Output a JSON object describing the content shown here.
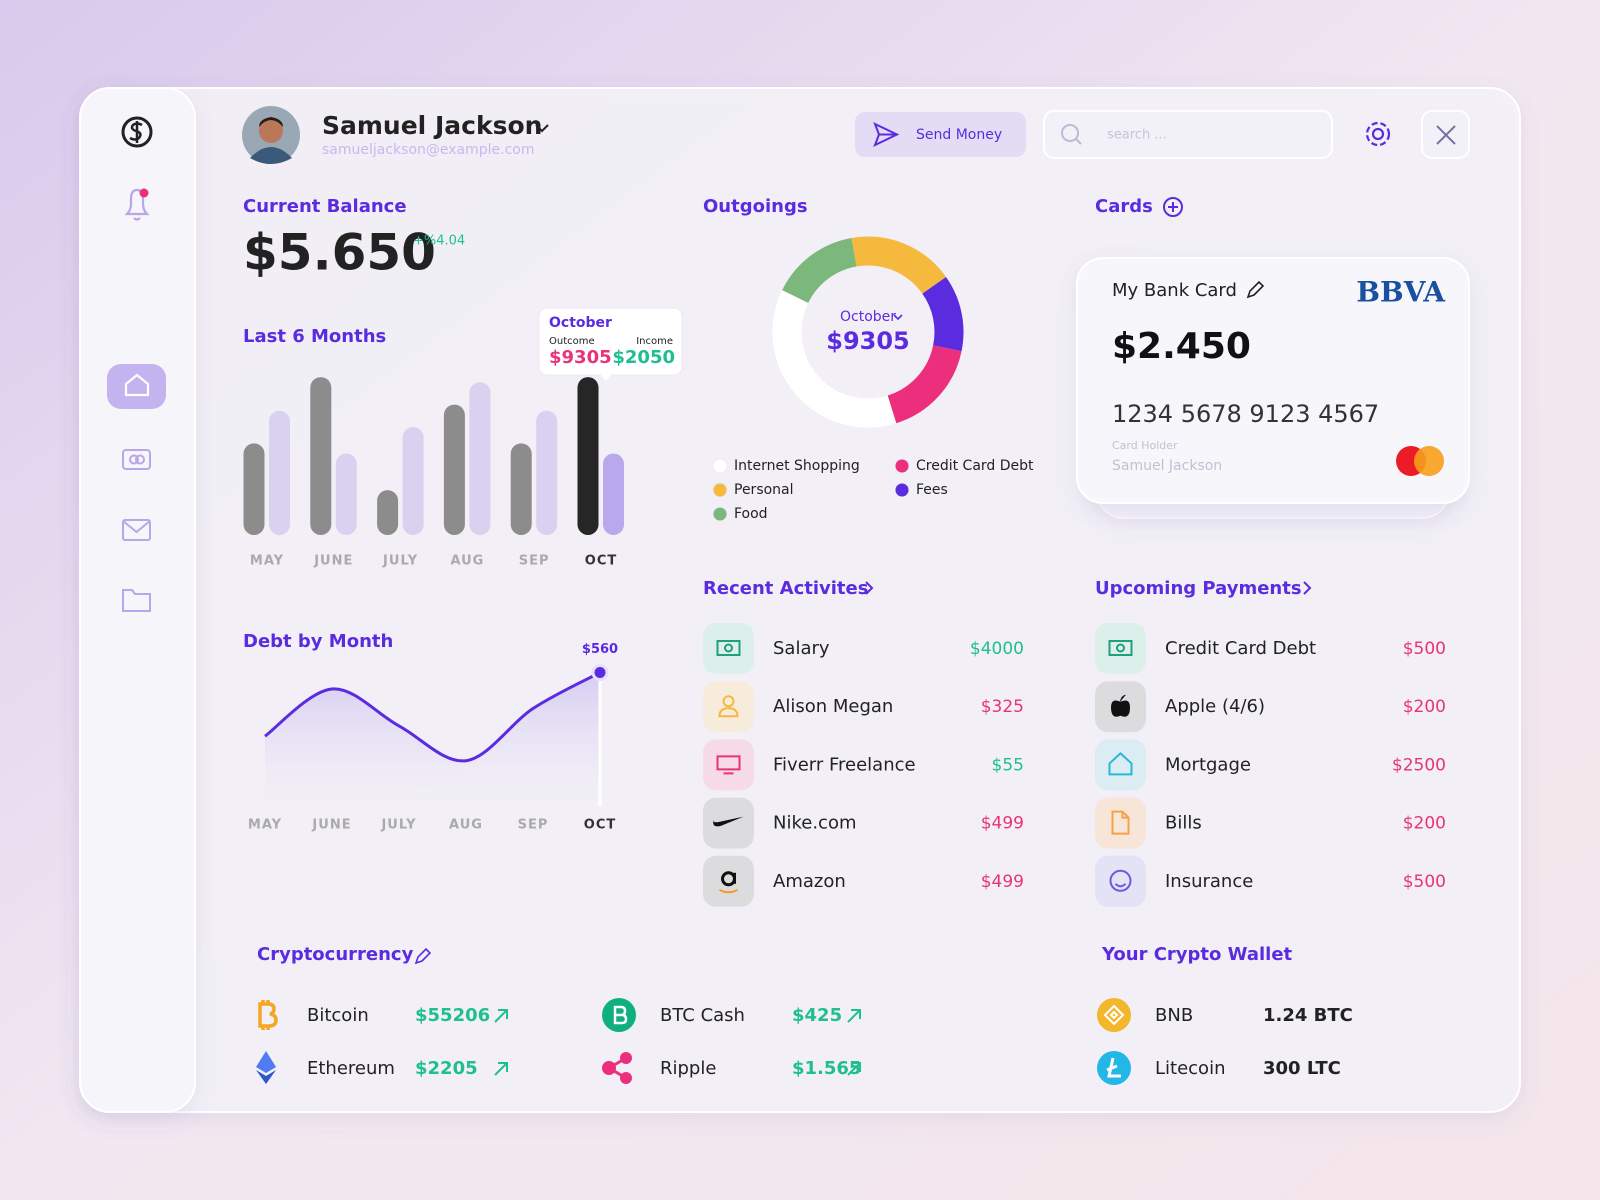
{
  "user": {
    "name": "Samuel Jackson",
    "email": "samueljackson@example.com"
  },
  "actions": {
    "send_money": "Send Money",
    "search_placeholder": "search ..."
  },
  "current_balance": {
    "title": "Current Balance",
    "amount": "$5.650",
    "change": "+%4.04"
  },
  "last_6_months": {
    "title": "Last 6 Months",
    "type": "bar",
    "categories": [
      "MAY",
      "JUNE",
      "JULY",
      "AUG",
      "SEP",
      "OCT"
    ],
    "series": [
      {
        "name": "Outcome",
        "color": [
          "#8c8c8c",
          "#8c8c8c",
          "#8c8c8c",
          "#8c8c8c",
          "#8c8c8c",
          "#262626"
        ],
        "values": [
          90,
          155,
          44,
          128,
          90,
          155
        ]
      },
      {
        "name": "Income",
        "color": [
          "#d9d1f0",
          "#d9d1f0",
          "#d9d1f0",
          "#d9d1f0",
          "#d9d1f0",
          "#b9a8ec"
        ],
        "values": [
          122,
          80,
          106,
          150,
          122,
          80
        ]
      }
    ],
    "ylim": [
      0,
      160
    ],
    "tooltip": {
      "title": "October",
      "outcome": "$9305",
      "income": "$2050"
    }
  },
  "debt_by_month": {
    "title": "Debt by Month",
    "type": "line",
    "categories": [
      "MAY",
      "JUNE",
      "JULY",
      "AUG",
      "SEP",
      "OCT"
    ],
    "values": [
      293,
      491,
      336,
      190,
      409,
      560
    ],
    "value_labels": [
      null,
      null,
      null,
      null,
      null,
      "$560"
    ],
    "ylim": [
      0,
      600
    ],
    "color": "#5b2be0"
  },
  "outgoings": {
    "title": "Outgoings",
    "type": "pie",
    "month": "October",
    "total": "$9305",
    "categories": [
      "Internet Shopping",
      "Personal",
      "Food",
      "Credit Card Debt",
      "Fees"
    ],
    "values": [
      37,
      18,
      15,
      17,
      13
    ],
    "colors": [
      "#ffffff",
      "#f5b93e",
      "#7cb77c",
      "#ec2f7c",
      "#5b2be0"
    ]
  },
  "cards": {
    "title": "Cards",
    "card": {
      "name": "My Bank Card",
      "bank": "BBVA",
      "balance": "$2.450",
      "number": "1234 5678 9123 4567",
      "holder_label": "Card Holder",
      "holder": "Samuel Jackson"
    }
  },
  "recent_activities": {
    "title": "Recent Activites",
    "items": [
      {
        "name": "Salary",
        "amount": "$4000",
        "color": "#1fbf8f"
      },
      {
        "name": "Alison Megan",
        "amount": "$325",
        "color": "#e8337a"
      },
      {
        "name": "Fiverr Freelance",
        "amount": "$55",
        "color": "#1fbf8f"
      },
      {
        "name": "Nike.com",
        "amount": "$499",
        "color": "#e8337a"
      },
      {
        "name": "Amazon",
        "amount": "$499",
        "color": "#e8337a"
      }
    ]
  },
  "upcoming_payments": {
    "title": "Upcoming Payments",
    "items": [
      {
        "name": "Credit Card Debt",
        "amount": "$500",
        "color": "#e8337a"
      },
      {
        "name": "Apple (4/6)",
        "amount": "$200",
        "color": "#e8337a"
      },
      {
        "name": "Mortgage",
        "amount": "$2500",
        "color": "#e8337a"
      },
      {
        "name": "Bills",
        "amount": "$200",
        "color": "#e8337a"
      },
      {
        "name": "Insurance",
        "amount": "$500",
        "color": "#e8337a"
      }
    ]
  },
  "cryptocurrency": {
    "title": "Cryptocurrency",
    "items": [
      {
        "name": "Bitcoin",
        "price": "$55206"
      },
      {
        "name": "Ethereum",
        "price": "$2205"
      },
      {
        "name": "BTC Cash",
        "price": "$425"
      },
      {
        "name": "Ripple",
        "price": "$1.565"
      }
    ]
  },
  "crypto_wallet": {
    "title": "Your Crypto Wallet",
    "items": [
      {
        "name": "BNB",
        "amount": "1.24 BTC"
      },
      {
        "name": "Litecoin",
        "amount": "300 LTC"
      }
    ]
  }
}
